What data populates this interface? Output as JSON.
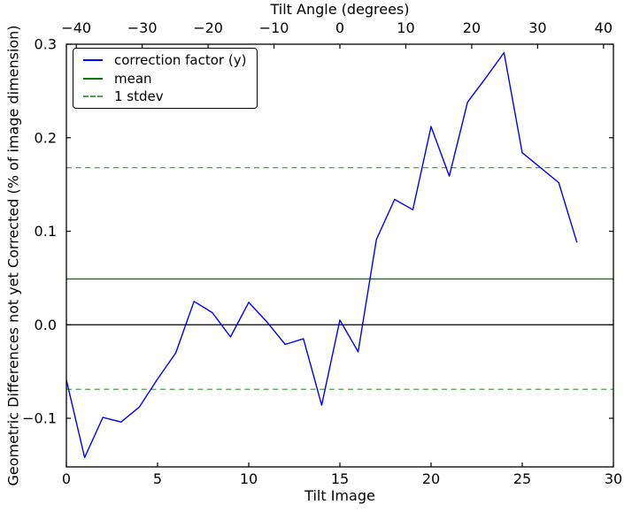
{
  "chart_data": {
    "type": "line",
    "top_xlabel": "Tilt Angle (degrees)",
    "xlabel": "Tilt Image",
    "ylabel": "Geometric Differences not yet Corrected (% of image dimension)",
    "xlim": [
      0,
      30
    ],
    "ylim": [
      -0.152,
      0.3
    ],
    "top_xlim": [
      -41.5,
      41.5
    ],
    "grid": false,
    "legend_position": "upper left",
    "x": [
      0,
      1,
      2,
      3,
      4,
      5,
      6,
      7,
      8,
      9,
      10,
      11,
      12,
      13,
      14,
      15,
      16,
      17,
      18,
      19,
      20,
      21,
      22,
      23,
      24,
      25,
      26,
      27,
      28
    ],
    "series": [
      {
        "name": "correction factor (y)",
        "color": "#0000ff",
        "style": "solid",
        "values": [
          -0.059,
          -0.142,
          -0.099,
          -0.104,
          -0.088,
          -0.058,
          -0.03,
          0.025,
          0.013,
          -0.013,
          0.024,
          0.003,
          -0.021,
          -0.015,
          -0.086,
          0.005,
          -0.029,
          0.091,
          0.134,
          0.123,
          0.212,
          0.159,
          0.238,
          0.264,
          0.291,
          0.184,
          0.168,
          0.152,
          0.088
        ]
      }
    ],
    "reference_lines": [
      {
        "name": "zero-line",
        "value": 0.0,
        "color": "#000000",
        "style": "solid"
      },
      {
        "name": "mean-line",
        "value": 0.049,
        "color": "#008000",
        "style": "solid"
      },
      {
        "name": "stdev-upper-line",
        "value": 0.168,
        "color": "#4ea04e",
        "style": "dashed"
      },
      {
        "name": "stdev-lower-line",
        "value": -0.069,
        "color": "#4ea04e",
        "style": "dashed"
      }
    ],
    "stats": {
      "mean": 0.049,
      "stdev": 0.119
    },
    "xticks": {
      "values": [
        0,
        5,
        10,
        15,
        20,
        25,
        30
      ],
      "labels": [
        "0",
        "5",
        "10",
        "15",
        "20",
        "25",
        "30"
      ]
    },
    "yticks": {
      "values": [
        -0.1,
        0.0,
        0.1,
        0.2,
        0.3
      ],
      "labels": [
        "−0.1",
        "0.0",
        "0.1",
        "0.2",
        "0.3"
      ]
    },
    "top_xticks": {
      "values": [
        -40,
        -30,
        -20,
        -10,
        0,
        10,
        20,
        30,
        40
      ],
      "labels": [
        "−40",
        "−30",
        "−20",
        "−10",
        "0",
        "10",
        "20",
        "30",
        "40"
      ]
    },
    "legend": {
      "items": [
        {
          "label": "correction factor (y)",
          "color": "#0000ff",
          "style": "solid"
        },
        {
          "label": "mean",
          "color": "#008000",
          "style": "solid"
        },
        {
          "label": "1 stdev",
          "color": "#4ea04e",
          "style": "dashed"
        }
      ]
    }
  }
}
